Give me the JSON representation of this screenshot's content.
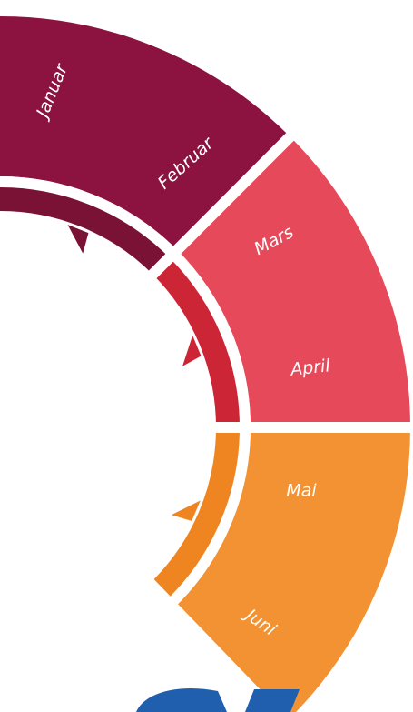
{
  "months": [
    "Januar",
    "Februar",
    "Mars",
    "April",
    "Mai",
    "Juni"
  ]
}
